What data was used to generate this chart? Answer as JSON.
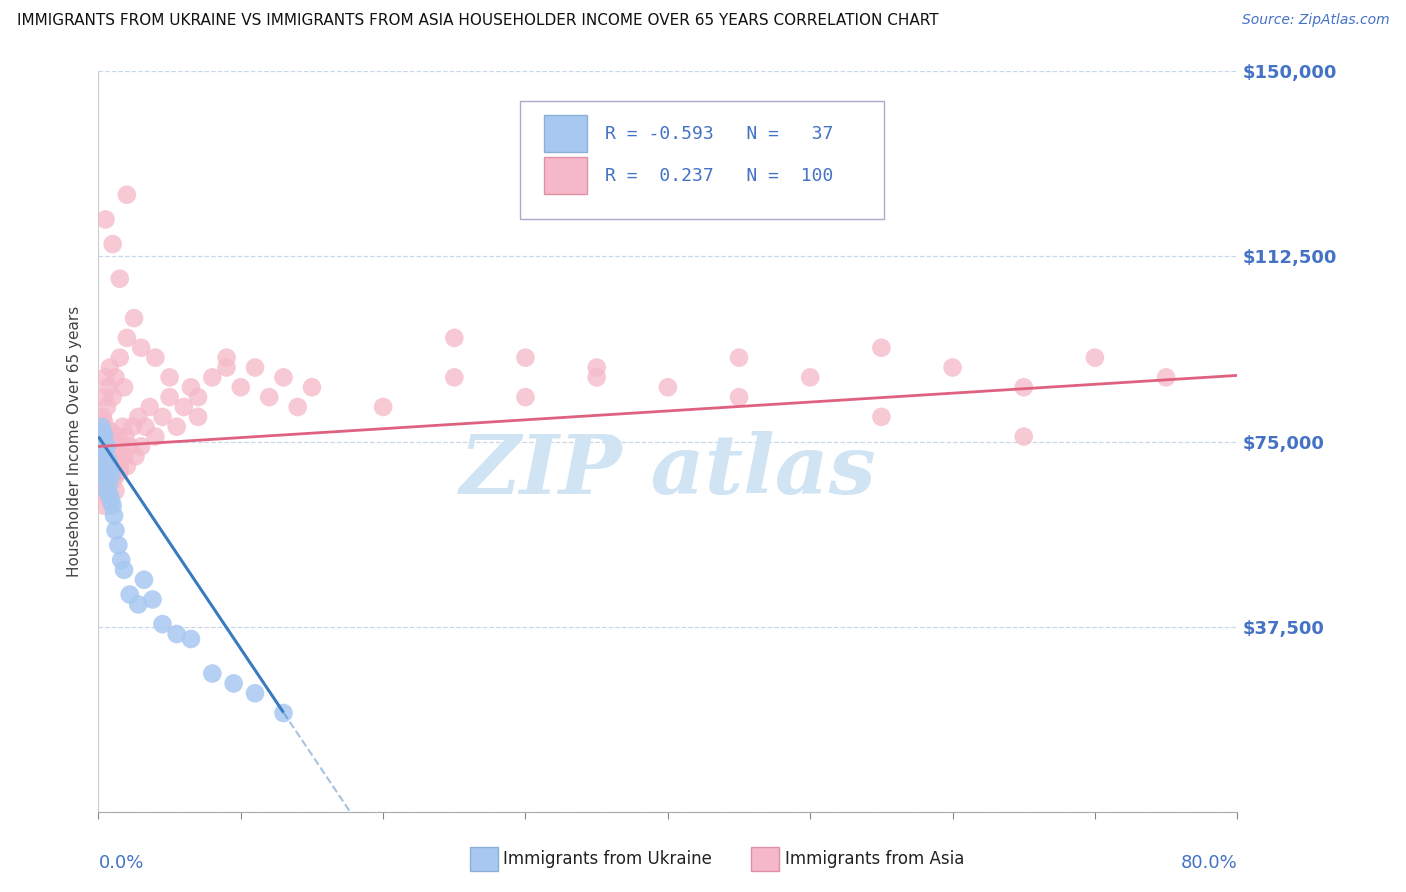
{
  "title": "IMMIGRANTS FROM UKRAINE VS IMMIGRANTS FROM ASIA HOUSEHOLDER INCOME OVER 65 YEARS CORRELATION CHART",
  "source": "Source: ZipAtlas.com",
  "ylabel": "Householder Income Over 65 years",
  "legend_label1": "Immigrants from Ukraine",
  "legend_label2": "Immigrants from Asia",
  "R1": -0.593,
  "N1": 37,
  "R2": 0.237,
  "N2": 100,
  "ylim": [
    0,
    150000
  ],
  "xlim": [
    0.0,
    0.8
  ],
  "yticks": [
    0,
    37500,
    75000,
    112500,
    150000
  ],
  "ytick_labels": [
    "",
    "$37,500",
    "$75,000",
    "$112,500",
    "$150,000"
  ],
  "xticks": [
    0.0,
    0.1,
    0.2,
    0.3,
    0.4,
    0.5,
    0.6,
    0.7,
    0.8
  ],
  "color_ukraine": "#a8c8f0",
  "color_asia": "#f5b8c8",
  "color_ukraine_line": "#3a7abf",
  "color_asia_line": "#e06080",
  "color_text": "#4472c4",
  "color_grid": "#c8d8e8",
  "background_color": "#ffffff",
  "watermark_color": "#d0e4f4",
  "ukraine_x": [
    0.001,
    0.002,
    0.002,
    0.003,
    0.003,
    0.003,
    0.004,
    0.004,
    0.004,
    0.005,
    0.005,
    0.006,
    0.006,
    0.006,
    0.007,
    0.007,
    0.008,
    0.008,
    0.009,
    0.009,
    0.01,
    0.011,
    0.012,
    0.014,
    0.016,
    0.018,
    0.022,
    0.028,
    0.032,
    0.038,
    0.045,
    0.055,
    0.065,
    0.08,
    0.095,
    0.11,
    0.13
  ],
  "ukraine_y": [
    74000,
    71000,
    78000,
    68000,
    73000,
    77000,
    70000,
    74000,
    76000,
    68000,
    72000,
    65000,
    70000,
    74000,
    66000,
    71000,
    64000,
    69000,
    63000,
    68000,
    62000,
    60000,
    57000,
    54000,
    51000,
    49000,
    44000,
    42000,
    47000,
    43000,
    38000,
    36000,
    35000,
    28000,
    26000,
    24000,
    20000
  ],
  "asia_x": [
    0.001,
    0.002,
    0.002,
    0.003,
    0.003,
    0.004,
    0.004,
    0.005,
    0.005,
    0.006,
    0.006,
    0.007,
    0.007,
    0.008,
    0.008,
    0.009,
    0.009,
    0.01,
    0.01,
    0.011,
    0.012,
    0.013,
    0.014,
    0.015,
    0.016,
    0.017,
    0.018,
    0.019,
    0.02,
    0.022,
    0.024,
    0.026,
    0.028,
    0.03,
    0.033,
    0.036,
    0.04,
    0.045,
    0.05,
    0.055,
    0.06,
    0.065,
    0.07,
    0.08,
    0.09,
    0.1,
    0.11,
    0.12,
    0.13,
    0.14,
    0.002,
    0.003,
    0.004,
    0.005,
    0.006,
    0.007,
    0.008,
    0.01,
    0.012,
    0.015,
    0.003,
    0.004,
    0.005,
    0.006,
    0.007,
    0.008,
    0.01,
    0.012,
    0.015,
    0.018,
    0.02,
    0.025,
    0.03,
    0.04,
    0.05,
    0.07,
    0.09,
    0.15,
    0.2,
    0.25,
    0.3,
    0.35,
    0.4,
    0.45,
    0.5,
    0.55,
    0.6,
    0.65,
    0.7,
    0.75,
    0.005,
    0.01,
    0.015,
    0.02,
    0.25,
    0.3,
    0.35,
    0.45,
    0.55,
    0.65
  ],
  "asia_y": [
    70000,
    68000,
    76000,
    72000,
    78000,
    73000,
    79000,
    71000,
    75000,
    69000,
    73000,
    77000,
    71000,
    75000,
    69000,
    73000,
    77000,
    72000,
    76000,
    74000,
    68000,
    72000,
    76000,
    70000,
    74000,
    78000,
    72000,
    76000,
    70000,
    74000,
    78000,
    72000,
    80000,
    74000,
    78000,
    82000,
    76000,
    80000,
    84000,
    78000,
    82000,
    86000,
    80000,
    88000,
    92000,
    86000,
    90000,
    84000,
    88000,
    82000,
    65000,
    67000,
    62000,
    66000,
    64000,
    68000,
    63000,
    67000,
    65000,
    69000,
    80000,
    84000,
    88000,
    82000,
    86000,
    90000,
    84000,
    88000,
    92000,
    86000,
    96000,
    100000,
    94000,
    92000,
    88000,
    84000,
    90000,
    86000,
    82000,
    88000,
    84000,
    90000,
    86000,
    92000,
    88000,
    94000,
    90000,
    86000,
    92000,
    88000,
    120000,
    115000,
    108000,
    125000,
    96000,
    92000,
    88000,
    84000,
    80000,
    76000
  ]
}
